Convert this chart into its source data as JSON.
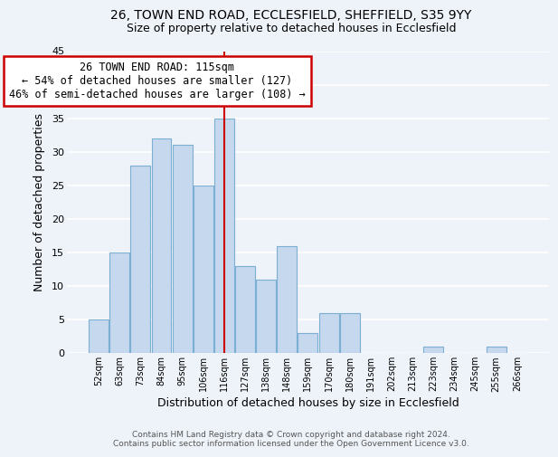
{
  "title_line1": "26, TOWN END ROAD, ECCLESFIELD, SHEFFIELD, S35 9YY",
  "title_line2": "Size of property relative to detached houses in Ecclesfield",
  "xlabel": "Distribution of detached houses by size in Ecclesfield",
  "ylabel": "Number of detached properties",
  "bar_labels": [
    "52sqm",
    "63sqm",
    "73sqm",
    "84sqm",
    "95sqm",
    "106sqm",
    "116sqm",
    "127sqm",
    "138sqm",
    "148sqm",
    "159sqm",
    "170sqm",
    "180sqm",
    "191sqm",
    "202sqm",
    "213sqm",
    "223sqm",
    "234sqm",
    "245sqm",
    "255sqm",
    "266sqm"
  ],
  "bar_values": [
    5,
    15,
    28,
    32,
    31,
    25,
    35,
    13,
    11,
    16,
    3,
    6,
    6,
    0,
    0,
    0,
    1,
    0,
    0,
    1,
    0
  ],
  "bar_color": "#c5d8ed",
  "bar_edge_color": "#7bafd4",
  "vline_bar_index": 6,
  "vline_color": "#cc0000",
  "ylim": [
    0,
    45
  ],
  "yticks": [
    0,
    5,
    10,
    15,
    20,
    25,
    30,
    35,
    40,
    45
  ],
  "annotation_title": "26 TOWN END ROAD: 115sqm",
  "annotation_line1": "← 54% of detached houses are smaller (127)",
  "annotation_line2": "46% of semi-detached houses are larger (108) →",
  "annotation_box_color": "#ffffff",
  "annotation_box_edge": "#cc0000",
  "footer_line1": "Contains HM Land Registry data © Crown copyright and database right 2024.",
  "footer_line2": "Contains public sector information licensed under the Open Government Licence v3.0.",
  "background_color": "#eef2f9",
  "plot_bg_color": "#eef2f9",
  "grid_color": "#ffffff"
}
